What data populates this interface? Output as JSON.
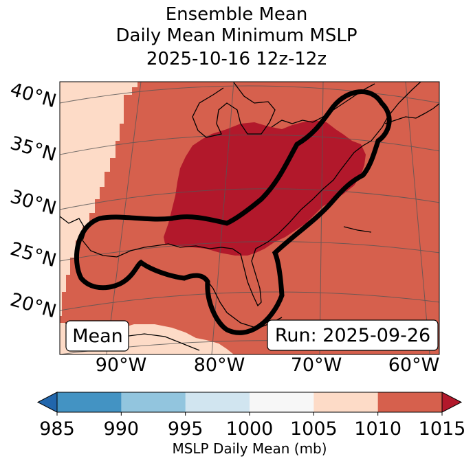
{
  "title": {
    "line1": "Ensemble Mean",
    "line2": "Daily Mean Minimum MSLP",
    "line3": "2025-10-16 12z-12z"
  },
  "map": {
    "lat_labels": [
      "40°N",
      "35°N",
      "30°N",
      "25°N",
      "20°N"
    ],
    "lon_labels": [
      "90°W",
      "80°W",
      "70°W",
      "60°W"
    ],
    "mean_box": "Mean",
    "run_box": "Run: 2025-09-26",
    "colors": {
      "c1000_1005": "#f7f7f7",
      "c1005_1010": "#fddbc7",
      "c1010_1015": "#d6604d",
      "c_over_1015": "#b2182b",
      "coast": "#000000",
      "contour": "#000000"
    },
    "regions": [
      {
        "name": "1005-1010 mb band (west)",
        "level": "1005-1010"
      },
      {
        "name": "1010-1015 mb area",
        "level": "1010-1015"
      },
      {
        "name": ">1015 mb high over eastern US",
        "level": ">1015"
      }
    ]
  },
  "colorbar": {
    "ticks": [
      "985",
      "990",
      "995",
      "1000",
      "1005",
      "1010",
      "1015"
    ],
    "colors": [
      "#2166ac",
      "#4393c3",
      "#92c5de",
      "#d1e5f0",
      "#f7f7f7",
      "#fddbc7",
      "#d6604d",
      "#b2182b"
    ],
    "label": "MSLP Daily Mean (mb)"
  }
}
